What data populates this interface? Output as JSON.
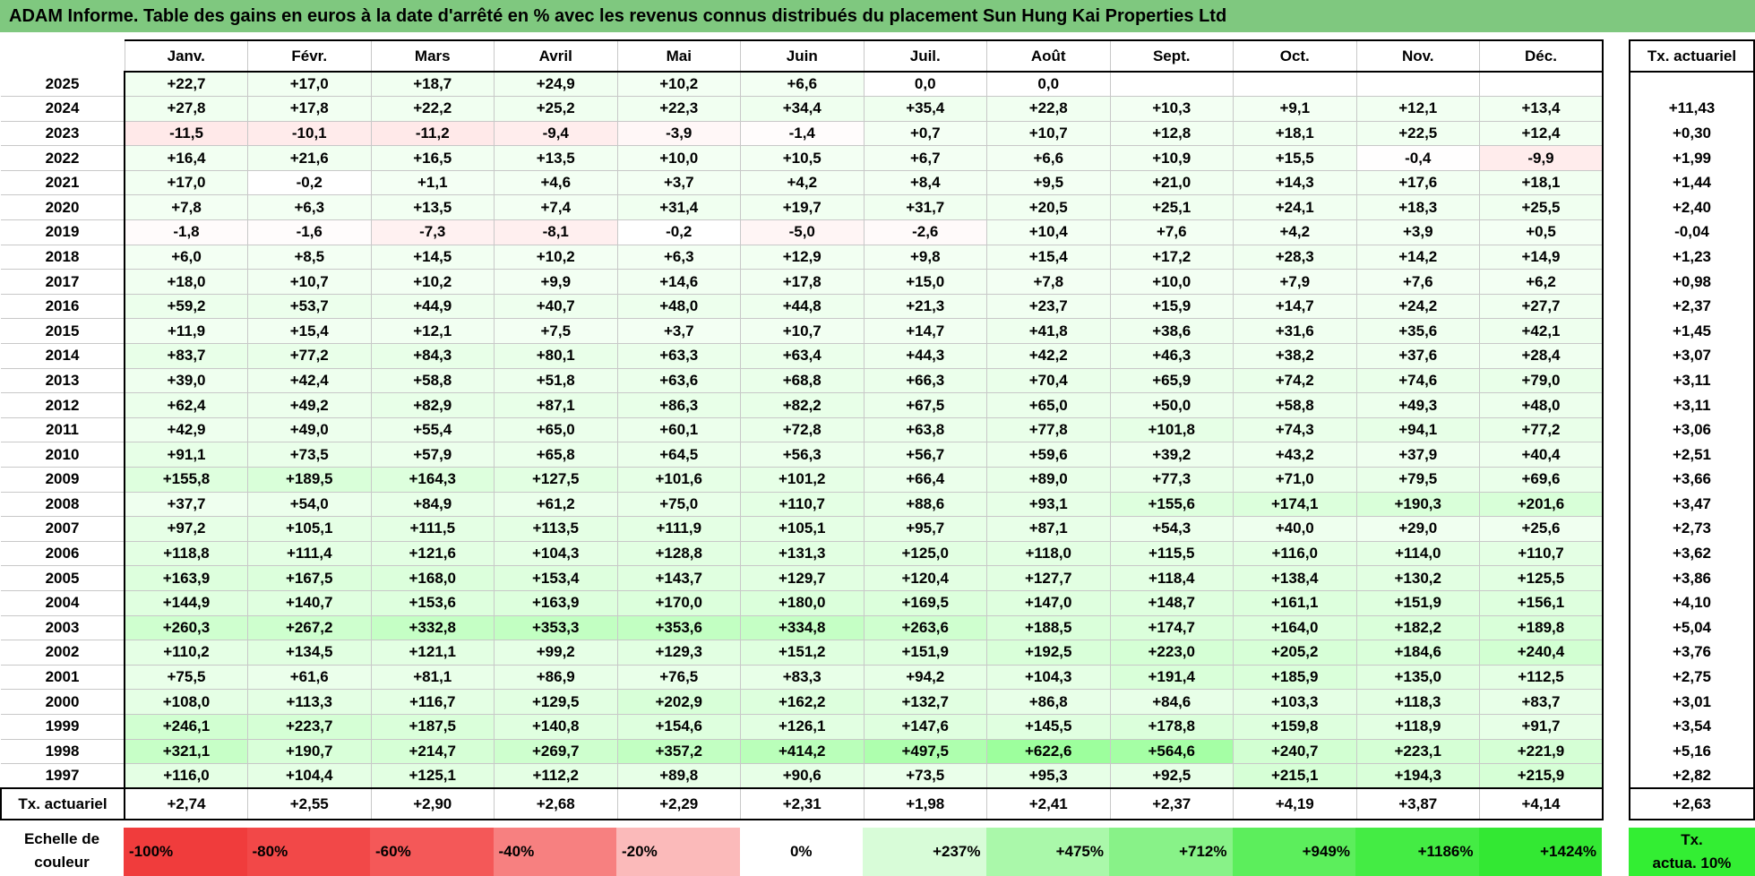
{
  "title": "ADAM Informe. Table des gains en euros à la date d'arrêté en % avec les revenus connus distribués du placement Sun Hung Kai Properties Ltd",
  "months": [
    "Janv.",
    "Févr.",
    "Mars",
    "Avril",
    "Mai",
    "Juin",
    "Juil.",
    "Août",
    "Sept.",
    "Oct.",
    "Nov.",
    "Déc."
  ],
  "rate_header": "Tx. actuariel",
  "rows": [
    {
      "year": "2025",
      "values": [
        "+22,7",
        "+17,0",
        "+18,7",
        "+24,9",
        "+10,2",
        "+6,6",
        "0,0",
        "0,0",
        "",
        "",
        "",
        ""
      ],
      "rate": ""
    },
    {
      "year": "2024",
      "values": [
        "+27,8",
        "+17,8",
        "+22,2",
        "+25,2",
        "+22,3",
        "+34,4",
        "+35,4",
        "+22,8",
        "+10,3",
        "+9,1",
        "+12,1",
        "+13,4"
      ],
      "rate": "+11,43"
    },
    {
      "year": "2023",
      "values": [
        "-11,5",
        "-10,1",
        "-11,2",
        "-9,4",
        "-3,9",
        "-1,4",
        "+0,7",
        "+10,7",
        "+12,8",
        "+18,1",
        "+22,5",
        "+12,4"
      ],
      "rate": "+0,30"
    },
    {
      "year": "2022",
      "values": [
        "+16,4",
        "+21,6",
        "+16,5",
        "+13,5",
        "+10,0",
        "+10,5",
        "+6,7",
        "+6,6",
        "+10,9",
        "+15,5",
        "-0,4",
        "-9,9"
      ],
      "rate": "+1,99"
    },
    {
      "year": "2021",
      "values": [
        "+17,0",
        "-0,2",
        "+1,1",
        "+4,6",
        "+3,7",
        "+4,2",
        "+8,4",
        "+9,5",
        "+21,0",
        "+14,3",
        "+17,6",
        "+18,1"
      ],
      "rate": "+1,44"
    },
    {
      "year": "2020",
      "values": [
        "+7,8",
        "+6,3",
        "+13,5",
        "+7,4",
        "+31,4",
        "+19,7",
        "+31,7",
        "+20,5",
        "+25,1",
        "+24,1",
        "+18,3",
        "+25,5"
      ],
      "rate": "+2,40"
    },
    {
      "year": "2019",
      "values": [
        "-1,8",
        "-1,6",
        "-7,3",
        "-8,1",
        "-0,2",
        "-5,0",
        "-2,6",
        "+10,4",
        "+7,6",
        "+4,2",
        "+3,9",
        "+0,5"
      ],
      "rate": "-0,04"
    },
    {
      "year": "2018",
      "values": [
        "+6,0",
        "+8,5",
        "+14,5",
        "+10,2",
        "+6,3",
        "+12,9",
        "+9,8",
        "+15,4",
        "+17,2",
        "+28,3",
        "+14,2",
        "+14,9"
      ],
      "rate": "+1,23"
    },
    {
      "year": "2017",
      "values": [
        "+18,0",
        "+10,7",
        "+10,2",
        "+9,9",
        "+14,6",
        "+17,8",
        "+15,0",
        "+7,8",
        "+10,0",
        "+7,9",
        "+7,6",
        "+6,2"
      ],
      "rate": "+0,98"
    },
    {
      "year": "2016",
      "values": [
        "+59,2",
        "+53,7",
        "+44,9",
        "+40,7",
        "+48,0",
        "+44,8",
        "+21,3",
        "+23,7",
        "+15,9",
        "+14,7",
        "+24,2",
        "+27,7"
      ],
      "rate": "+2,37"
    },
    {
      "year": "2015",
      "values": [
        "+11,9",
        "+15,4",
        "+12,1",
        "+7,5",
        "+3,7",
        "+10,7",
        "+14,7",
        "+41,8",
        "+38,6",
        "+31,6",
        "+35,6",
        "+42,1"
      ],
      "rate": "+1,45"
    },
    {
      "year": "2014",
      "values": [
        "+83,7",
        "+77,2",
        "+84,3",
        "+80,1",
        "+63,3",
        "+63,4",
        "+44,3",
        "+42,2",
        "+46,3",
        "+38,2",
        "+37,6",
        "+28,4"
      ],
      "rate": "+3,07"
    },
    {
      "year": "2013",
      "values": [
        "+39,0",
        "+42,4",
        "+58,8",
        "+51,8",
        "+63,6",
        "+68,8",
        "+66,3",
        "+70,4",
        "+65,9",
        "+74,2",
        "+74,6",
        "+79,0"
      ],
      "rate": "+3,11"
    },
    {
      "year": "2012",
      "values": [
        "+62,4",
        "+49,2",
        "+82,9",
        "+87,1",
        "+86,3",
        "+82,2",
        "+67,5",
        "+65,0",
        "+50,0",
        "+58,8",
        "+49,3",
        "+48,0"
      ],
      "rate": "+3,11"
    },
    {
      "year": "2011",
      "values": [
        "+42,9",
        "+49,0",
        "+55,4",
        "+65,0",
        "+60,1",
        "+72,8",
        "+63,8",
        "+77,8",
        "+101,8",
        "+74,3",
        "+94,1",
        "+77,2"
      ],
      "rate": "+3,06"
    },
    {
      "year": "2010",
      "values": [
        "+91,1",
        "+73,5",
        "+57,9",
        "+65,8",
        "+64,5",
        "+56,3",
        "+56,7",
        "+59,6",
        "+39,2",
        "+43,2",
        "+37,9",
        "+40,4"
      ],
      "rate": "+2,51"
    },
    {
      "year": "2009",
      "values": [
        "+155,8",
        "+189,5",
        "+164,3",
        "+127,5",
        "+101,6",
        "+101,2",
        "+66,4",
        "+89,0",
        "+77,3",
        "+71,0",
        "+79,5",
        "+69,6"
      ],
      "rate": "+3,66"
    },
    {
      "year": "2008",
      "values": [
        "+37,7",
        "+54,0",
        "+84,9",
        "+61,2",
        "+75,0",
        "+110,7",
        "+88,6",
        "+93,1",
        "+155,6",
        "+174,1",
        "+190,3",
        "+201,6"
      ],
      "rate": "+3,47"
    },
    {
      "year": "2007",
      "values": [
        "+97,2",
        "+105,1",
        "+111,5",
        "+113,5",
        "+111,9",
        "+105,1",
        "+95,7",
        "+87,1",
        "+54,3",
        "+40,0",
        "+29,0",
        "+25,6"
      ],
      "rate": "+2,73"
    },
    {
      "year": "2006",
      "values": [
        "+118,8",
        "+111,4",
        "+121,6",
        "+104,3",
        "+128,8",
        "+131,3",
        "+125,0",
        "+118,0",
        "+115,5",
        "+116,0",
        "+114,0",
        "+110,7"
      ],
      "rate": "+3,62"
    },
    {
      "year": "2005",
      "values": [
        "+163,9",
        "+167,5",
        "+168,0",
        "+153,4",
        "+143,7",
        "+129,7",
        "+120,4",
        "+127,7",
        "+118,4",
        "+138,4",
        "+130,2",
        "+125,5"
      ],
      "rate": "+3,86"
    },
    {
      "year": "2004",
      "values": [
        "+144,9",
        "+140,7",
        "+153,6",
        "+163,9",
        "+170,0",
        "+180,0",
        "+169,5",
        "+147,0",
        "+148,7",
        "+161,1",
        "+151,9",
        "+156,1"
      ],
      "rate": "+4,10"
    },
    {
      "year": "2003",
      "values": [
        "+260,3",
        "+267,2",
        "+332,8",
        "+353,3",
        "+353,6",
        "+334,8",
        "+263,6",
        "+188,5",
        "+174,7",
        "+164,0",
        "+182,2",
        "+189,8"
      ],
      "rate": "+5,04"
    },
    {
      "year": "2002",
      "values": [
        "+110,2",
        "+134,5",
        "+121,1",
        "+99,2",
        "+129,3",
        "+151,2",
        "+151,9",
        "+192,5",
        "+223,0",
        "+205,2",
        "+184,6",
        "+240,4"
      ],
      "rate": "+3,76"
    },
    {
      "year": "2001",
      "values": [
        "+75,5",
        "+61,6",
        "+81,1",
        "+86,9",
        "+76,5",
        "+83,3",
        "+94,2",
        "+104,3",
        "+191,4",
        "+185,9",
        "+135,0",
        "+112,5"
      ],
      "rate": "+2,75"
    },
    {
      "year": "2000",
      "values": [
        "+108,0",
        "+113,3",
        "+116,7",
        "+129,5",
        "+202,9",
        "+162,2",
        "+132,7",
        "+86,8",
        "+84,6",
        "+103,3",
        "+118,3",
        "+83,7"
      ],
      "rate": "+3,01"
    },
    {
      "year": "1999",
      "values": [
        "+246,1",
        "+223,7",
        "+187,5",
        "+140,8",
        "+154,6",
        "+126,1",
        "+147,6",
        "+145,5",
        "+178,8",
        "+159,8",
        "+118,9",
        "+91,7"
      ],
      "rate": "+3,54"
    },
    {
      "year": "1998",
      "values": [
        "+321,1",
        "+190,7",
        "+214,7",
        "+269,7",
        "+357,2",
        "+414,2",
        "+497,5",
        "+622,6",
        "+564,6",
        "+240,7",
        "+223,1",
        "+221,9"
      ],
      "rate": "+5,16"
    },
    {
      "year": "1997",
      "values": [
        "+116,0",
        "+104,4",
        "+125,1",
        "+112,2",
        "+89,8",
        "+90,6",
        "+73,5",
        "+95,3",
        "+92,5",
        "+215,1",
        "+194,3",
        "+215,9"
      ],
      "rate": "+2,82"
    }
  ],
  "footer": {
    "label": "Tx. actuariel",
    "values": [
      "+2,74",
      "+2,55",
      "+2,90",
      "+2,68",
      "+2,29",
      "+2,31",
      "+1,98",
      "+2,41",
      "+2,37",
      "+4,19",
      "+3,87",
      "+4,14"
    ],
    "rate": "+2,63"
  },
  "scale": {
    "label_line1": "Echelle de",
    "label_line2": "couleur",
    "swatches": [
      {
        "label": "-100%",
        "color": "#f03c3c",
        "align": "left"
      },
      {
        "label": "-80%",
        "color": "#f24848",
        "align": "left"
      },
      {
        "label": "-60%",
        "color": "#f45858",
        "align": "left"
      },
      {
        "label": "-40%",
        "color": "#f78080",
        "align": "left"
      },
      {
        "label": "-20%",
        "color": "#fbbaba",
        "align": "left"
      },
      {
        "label": "0%",
        "color": "#ffffff",
        "align": "center"
      },
      {
        "label": "+237%",
        "color": "#d8fcd8",
        "align": "right"
      },
      {
        "label": "+475%",
        "color": "#aaf8aa",
        "align": "right"
      },
      {
        "label": "+712%",
        "color": "#88f288",
        "align": "right"
      },
      {
        "label": "+949%",
        "color": "#5cee5c",
        "align": "right"
      },
      {
        "label": "+1186%",
        "color": "#44ec44",
        "align": "right"
      },
      {
        "label": "+1424%",
        "color": "#33e833",
        "align": "right"
      }
    ],
    "actua_line1": "Tx.",
    "actua_line2": "actua. 10%",
    "actua_color": "#33ee33"
  }
}
